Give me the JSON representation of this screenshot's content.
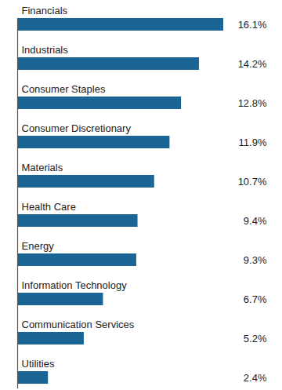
{
  "chart_data": {
    "type": "bar",
    "orientation": "horizontal",
    "categories": [
      "Financials",
      "Industrials",
      "Consumer Staples",
      "Consumer Discretionary",
      "Materials",
      "Health Care",
      "Energy",
      "Information Technology",
      "Communication Services",
      "Utilities"
    ],
    "values": [
      16.1,
      14.2,
      12.8,
      11.9,
      10.7,
      9.4,
      9.3,
      6.7,
      5.2,
      2.4
    ],
    "value_labels": [
      "16.1%",
      "14.2%",
      "12.8%",
      "11.9%",
      "10.7%",
      "9.4%",
      "9.3%",
      "6.7%",
      "5.2%",
      "2.4%"
    ],
    "color": "#1a6496",
    "data_labels": true,
    "tick_labels": false
  }
}
